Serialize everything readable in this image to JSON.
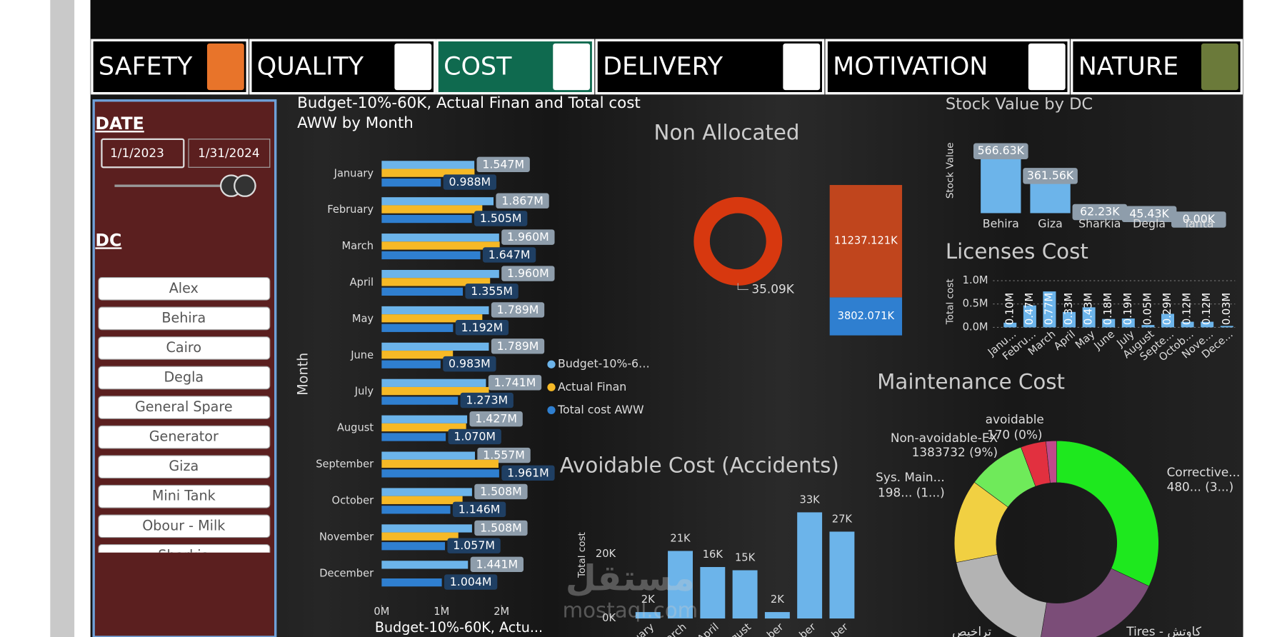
{
  "tabs": [
    "SAFETY",
    "QUALITY",
    "COST",
    "DELIVERY",
    "MOTIVATION",
    "NATURE"
  ],
  "filters": {
    "date_label": "DATE",
    "start_date": "1/1/2023",
    "end_date": "1/31/2024",
    "dc_label": "DC",
    "dc_options": [
      "Alex",
      "Behira",
      "Cairo",
      "Degla",
      "General Spare",
      "Generator",
      "Giza",
      "Mini Tank",
      "Obour - Milk",
      "Sharkia"
    ]
  },
  "watermark": [
    "مستقل",
    "mostaql.com"
  ],
  "chart_data": [
    {
      "type": "bar",
      "orientation": "horizontal",
      "title": "Budget-10%-60K, Actual Finan and Total cost AWW by Month",
      "y_label": "Month",
      "x_label": "Budget-10%-60K, Actu...",
      "categories": [
        "January",
        "February",
        "March",
        "April",
        "May",
        "June",
        "July",
        "August",
        "September",
        "October",
        "November",
        "December"
      ],
      "series": [
        {
          "name": "Budget-10%-6…",
          "color": "#6cb4ea",
          "values": [
            1.547,
            1.867,
            1.96,
            1.96,
            1.789,
            1.789,
            1.741,
            1.427,
            1.557,
            1.508,
            1.508,
            1.441
          ],
          "value_labels": [
            "1.547M",
            "1.867M",
            "1.960M",
            "1.960M",
            "1.789M",
            "1.789M",
            "1.741M",
            "1.427M",
            "1.557M",
            "1.508M",
            "1.508M",
            "1.441M"
          ]
        },
        {
          "name": "Actual Finan",
          "color": "#f6b926",
          "values": [
            1.55,
            1.68,
            1.97,
            1.81,
            1.68,
            1.19,
            1.79,
            1.41,
            1.95,
            1.35,
            1.28,
            null
          ]
        },
        {
          "name": "Total cost AWW",
          "color": "#2f7fd0",
          "values": [
            0.988,
            1.505,
            1.647,
            1.355,
            1.192,
            0.983,
            1.273,
            1.07,
            1.961,
            1.146,
            1.057,
            1.004
          ],
          "value_labels": [
            "0.988M",
            "1.505M",
            "1.647M",
            "1.355M",
            "1.192M",
            "0.983M",
            "1.273M",
            "1.070M",
            "1.961M",
            "1.146M",
            "1.057M",
            "1.004M"
          ]
        }
      ],
      "xlim": [
        0,
        2
      ],
      "xticks": [
        {
          "value": 0,
          "label": "0M"
        },
        {
          "value": 1,
          "label": "1M"
        },
        {
          "value": 2,
          "label": "2M"
        }
      ]
    },
    {
      "type": "pie",
      "title": "Non Allocated",
      "donut": true,
      "values": [
        35.09
      ],
      "value_labels": [
        "35.09K"
      ],
      "colors": [
        "#d7380f"
      ]
    },
    {
      "type": "bar",
      "stacked": true,
      "series": [
        {
          "color": "#2f7fd0",
          "values": [
            3802.071
          ],
          "value_labels": [
            "3802.071K"
          ]
        },
        {
          "color": "#c0451d",
          "values": [
            11237.121
          ],
          "value_labels": [
            "11237.121K"
          ]
        }
      ]
    },
    {
      "type": "bar",
      "title": "Stock Value by DC",
      "y_label": "Stock Value",
      "categories": [
        "Behira",
        "Giza",
        "Sharkia",
        "Degla",
        "Tanta"
      ],
      "values": [
        566.63,
        361.56,
        62.23,
        45.43,
        0
      ],
      "value_labels": [
        "566.63K",
        "361.56K",
        "62.23K",
        "45.43K",
        "0.00K"
      ],
      "color": "#6cb4ea"
    },
    {
      "type": "bar",
      "title": "Licenses Cost",
      "y_label": "Total cost",
      "categories": [
        "Janu...",
        "Febru...",
        "March",
        "April",
        "May",
        "June",
        "July",
        "August",
        "Septe...",
        "Octob...",
        "Nove...",
        "Dece..."
      ],
      "values": [
        0.1,
        0.47,
        0.77,
        0.33,
        0.43,
        0.18,
        0.19,
        0.05,
        0.29,
        0.12,
        0.12,
        0.03
      ],
      "value_labels": [
        "0.10M",
        "0.47M",
        "0.77M",
        "0.33M",
        "0.43M",
        "0.18M",
        "0.19M",
        "0.05M",
        "0.29M",
        "0.12M",
        "0.12M",
        "0.03M"
      ],
      "color": "#6cb4ea",
      "ylim": [
        0,
        1
      ],
      "yticks": [
        {
          "value": 0,
          "label": "0.0M"
        },
        {
          "value": 0.5,
          "label": "0.5M"
        },
        {
          "value": 1,
          "label": "1.0M"
        }
      ],
      "grid": true
    },
    {
      "type": "bar",
      "title": "Avoidable Cost (Accidents)",
      "y_label": "Total cost",
      "categories": [
        "uary",
        "arch",
        "April",
        "gust",
        "ber",
        "ber",
        "ber"
      ],
      "values": [
        2,
        21,
        16,
        15,
        2,
        33,
        27
      ],
      "value_labels": [
        "2K",
        "21K",
        "16K",
        "15K",
        "2K",
        "33K",
        "27K"
      ],
      "color": "#6cb4ea",
      "ylim": [
        0,
        36
      ],
      "yticks": [
        {
          "value": 0,
          "label": "0K"
        },
        {
          "value": 20,
          "label": "20K"
        }
      ]
    },
    {
      "type": "pie",
      "title": "Maintenance Cost",
      "donut": true,
      "categories": [
        "Corrective...",
        "Tires - كاوتش",
        "تراخيص",
        "Sys. Main...",
        "Non-avoidable-EX",
        null,
        null,
        "avoidable"
      ],
      "values": [
        4800000,
        3100000,
        2900000,
        1980000,
        1383732,
        600000,
        250000,
        170
      ],
      "value_labels": [
        "480... (3...)",
        null,
        null,
        "198... (1...)",
        "1383732 (9%)",
        null,
        null,
        "170 (0%)"
      ],
      "colors": [
        "#1ee81e",
        "#7b4d78",
        "#b3b3b3",
        "#f1d042",
        "#6fea5a",
        "#e2303f",
        "#c04a8a",
        "#8090b0"
      ]
    }
  ]
}
